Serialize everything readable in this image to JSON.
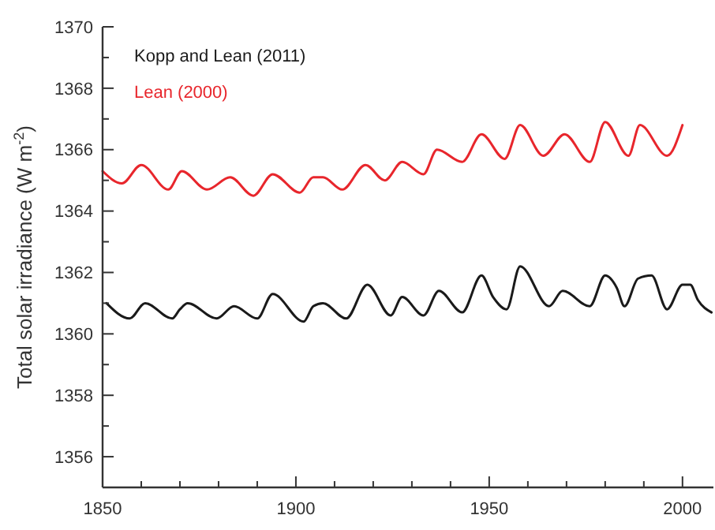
{
  "chart_data": {
    "type": "line",
    "ylabel": "Total solar irradiance (W m$^{-2}$)",
    "xlim": [
      1850,
      2008
    ],
    "ylim": [
      1355,
      1370
    ],
    "xticks": [
      1850,
      {
        "value": 1860,
        "label": null
      },
      {
        "value": 1870,
        "label": null
      },
      {
        "value": 1880,
        "label": null
      },
      {
        "value": 1890,
        "label": null
      },
      1900,
      {
        "value": 1910,
        "label": null
      },
      {
        "value": 1920,
        "label": null
      },
      {
        "value": 1930,
        "label": null
      },
      {
        "value": 1940,
        "label": null
      },
      1950,
      {
        "value": 1960,
        "label": null
      },
      {
        "value": 1970,
        "label": null
      },
      {
        "value": 1980,
        "label": null
      },
      {
        "value": 1990,
        "label": null
      },
      2000
    ],
    "yticks": [
      {
        "value": 1355,
        "label": null
      },
      1356,
      {
        "value": 1357,
        "label": null
      },
      1358,
      {
        "value": 1359,
        "label": null
      },
      1360,
      {
        "value": 1361,
        "label": null
      },
      1362,
      {
        "value": 1363,
        "label": null
      },
      1364,
      {
        "value": 1365,
        "label": null
      },
      1366,
      {
        "value": 1367,
        "label": null
      },
      1368,
      {
        "value": 1369,
        "label": null
      },
      1370
    ],
    "legend": "top left",
    "grid": false,
    "marker": "none",
    "line_style": "solid",
    "series": [
      {
        "name": "Kopp and Lean (2011)",
        "color": "#1a1a1a",
        "x": [
          1851,
          1857,
          1861,
          1868,
          1870,
          1872,
          1879.5,
          1884,
          1890,
          1894,
          1902,
          1904.5,
          1907,
          1913,
          1918.5,
          1924.5,
          1927.5,
          1933,
          1937,
          1943,
          1948,
          1951,
          1954.5,
          1958,
          1965.5,
          1969,
          1976,
          1980,
          1983,
          1985,
          1988.5,
          1992,
          1996,
          2000,
          2002,
          2004,
          2007.5
        ],
        "values": [
          1361.0,
          1360.5,
          1361.0,
          1360.5,
          1360.8,
          1361.0,
          1360.5,
          1360.9,
          1360.5,
          1361.3,
          1360.4,
          1360.9,
          1361.0,
          1360.5,
          1361.6,
          1360.6,
          1361.2,
          1360.6,
          1361.4,
          1360.7,
          1361.9,
          1361.2,
          1360.8,
          1362.2,
          1360.9,
          1361.4,
          1360.9,
          1361.9,
          1361.5,
          1360.9,
          1361.8,
          1361.9,
          1360.8,
          1361.6,
          1361.6,
          1361.1,
          1360.7
        ]
      },
      {
        "name": "Lean (2000)",
        "color": "#e8262c",
        "x": [
          1850,
          1855,
          1860,
          1867,
          1870.5,
          1877,
          1883,
          1889,
          1894,
          1901,
          1904.5,
          1907,
          1912,
          1918,
          1923,
          1927.5,
          1933,
          1936.5,
          1943,
          1948,
          1954,
          1958,
          1964,
          1969.5,
          1976,
          1980,
          1986,
          1989,
          1996,
          2000
        ],
        "values": [
          1365.3,
          1364.9,
          1365.5,
          1364.7,
          1365.3,
          1364.7,
          1365.1,
          1364.5,
          1365.2,
          1364.6,
          1365.1,
          1365.1,
          1364.7,
          1365.5,
          1365.0,
          1365.6,
          1365.2,
          1366.0,
          1365.6,
          1366.5,
          1365.7,
          1366.8,
          1365.8,
          1366.5,
          1365.6,
          1366.9,
          1365.8,
          1366.8,
          1365.8,
          1366.8
        ]
      }
    ]
  }
}
